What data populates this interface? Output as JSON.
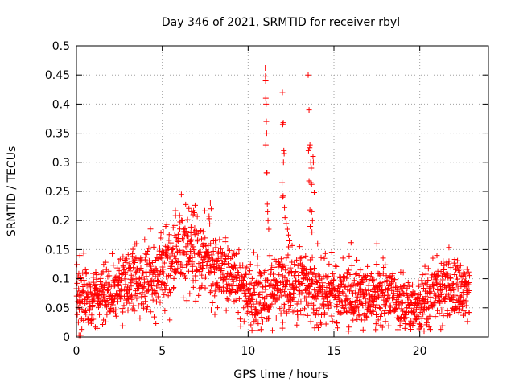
{
  "chart_data": {
    "type": "scatter",
    "title": "Day 346 of 2021, SRMTID for receiver rbyl",
    "xlabel": "GPS time / hours",
    "ylabel": "SRMTID / TECUs",
    "xlim": [
      0,
      24
    ],
    "ylim": [
      0,
      0.5
    ],
    "xticks": [
      0,
      5,
      10,
      15,
      20
    ],
    "yticks": [
      0,
      0.05,
      0.1,
      0.15,
      0.2,
      0.25,
      0.3,
      0.35,
      0.4,
      0.45,
      0.5
    ],
    "grid": true,
    "marker": "plus",
    "color": "#ff0000",
    "generation": {
      "seed": 346,
      "x_start": 0.0,
      "x_end": 22.9,
      "step_hours": 0.0125
    },
    "baseline": [
      [
        0.0,
        0.072
      ],
      [
        1.0,
        0.07
      ],
      [
        2.0,
        0.075
      ],
      [
        3.0,
        0.09
      ],
      [
        4.0,
        0.1
      ],
      [
        5.0,
        0.105
      ],
      [
        6.0,
        0.15
      ],
      [
        7.0,
        0.155
      ],
      [
        8.0,
        0.12
      ],
      [
        9.0,
        0.105
      ],
      [
        10.0,
        0.075
      ],
      [
        11.0,
        0.072
      ],
      [
        12.0,
        0.085
      ],
      [
        13.0,
        0.09
      ],
      [
        14.0,
        0.08
      ],
      [
        15.0,
        0.072
      ],
      [
        16.0,
        0.075
      ],
      [
        17.0,
        0.07
      ],
      [
        18.0,
        0.07
      ],
      [
        19.0,
        0.06
      ],
      [
        20.0,
        0.05
      ],
      [
        21.0,
        0.08
      ],
      [
        22.0,
        0.08
      ],
      [
        22.9,
        0.075
      ]
    ],
    "spikes": [
      {
        "x": 11.0,
        "y": 0.462
      },
      {
        "x": 11.01,
        "y": 0.448
      },
      {
        "x": 11.02,
        "y": 0.44
      },
      {
        "x": 11.03,
        "y": 0.41
      },
      {
        "x": 11.05,
        "y": 0.4
      },
      {
        "x": 11.06,
        "y": 0.37
      },
      {
        "x": 11.08,
        "y": 0.35
      },
      {
        "x": 11.03,
        "y": 0.33
      },
      {
        "x": 11.07,
        "y": 0.282
      },
      {
        "x": 11.1,
        "y": 0.282
      },
      {
        "x": 11.12,
        "y": 0.228
      },
      {
        "x": 11.14,
        "y": 0.215
      },
      {
        "x": 11.16,
        "y": 0.2
      },
      {
        "x": 11.2,
        "y": 0.185
      },
      {
        "x": 12.0,
        "y": 0.42
      },
      {
        "x": 12.05,
        "y": 0.368
      },
      {
        "x": 12.02,
        "y": 0.365
      },
      {
        "x": 12.08,
        "y": 0.32
      },
      {
        "x": 12.1,
        "y": 0.315
      },
      {
        "x": 12.06,
        "y": 0.3
      },
      {
        "x": 11.98,
        "y": 0.265
      },
      {
        "x": 12.0,
        "y": 0.24
      },
      {
        "x": 12.04,
        "y": 0.242
      },
      {
        "x": 12.12,
        "y": 0.222
      },
      {
        "x": 12.15,
        "y": 0.205
      },
      {
        "x": 12.22,
        "y": 0.195
      },
      {
        "x": 12.3,
        "y": 0.185
      },
      {
        "x": 12.35,
        "y": 0.175
      },
      {
        "x": 12.4,
        "y": 0.165
      },
      {
        "x": 13.5,
        "y": 0.45
      },
      {
        "x": 13.55,
        "y": 0.39
      },
      {
        "x": 13.6,
        "y": 0.33
      },
      {
        "x": 13.58,
        "y": 0.325
      },
      {
        "x": 13.52,
        "y": 0.32
      },
      {
        "x": 13.78,
        "y": 0.31
      },
      {
        "x": 13.65,
        "y": 0.3
      },
      {
        "x": 13.8,
        "y": 0.3
      },
      {
        "x": 13.68,
        "y": 0.29
      },
      {
        "x": 13.55,
        "y": 0.268
      },
      {
        "x": 13.65,
        "y": 0.265
      },
      {
        "x": 13.7,
        "y": 0.262
      },
      {
        "x": 13.85,
        "y": 0.248
      },
      {
        "x": 13.6,
        "y": 0.218
      },
      {
        "x": 13.7,
        "y": 0.215
      },
      {
        "x": 13.75,
        "y": 0.2
      },
      {
        "x": 13.62,
        "y": 0.19
      },
      {
        "x": 13.72,
        "y": 0.18
      },
      {
        "x": 14.05,
        "y": 0.16
      },
      {
        "x": 16.0,
        "y": 0.162
      },
      {
        "x": 17.5,
        "y": 0.16
      },
      {
        "x": 21.0,
        "y": 0.14
      },
      {
        "x": 21.7,
        "y": 0.13
      },
      {
        "x": 22.2,
        "y": 0.12
      },
      {
        "x": 6.7,
        "y": 0.215
      },
      {
        "x": 6.8,
        "y": 0.21
      },
      {
        "x": 7.8,
        "y": 0.23
      },
      {
        "x": 7.85,
        "y": 0.22
      },
      {
        "x": 5.2,
        "y": 0.19
      },
      {
        "x": 3.5,
        "y": 0.16
      },
      {
        "x": 0.2,
        "y": 0.14
      },
      {
        "x": 0.25,
        "y": 0.003
      },
      {
        "x": 0.15,
        "y": 0.003
      },
      {
        "x": 12.0,
        "y": 0.015
      },
      {
        "x": 12.02,
        "y": 0.025
      },
      {
        "x": 16.7,
        "y": 0.012
      }
    ]
  }
}
